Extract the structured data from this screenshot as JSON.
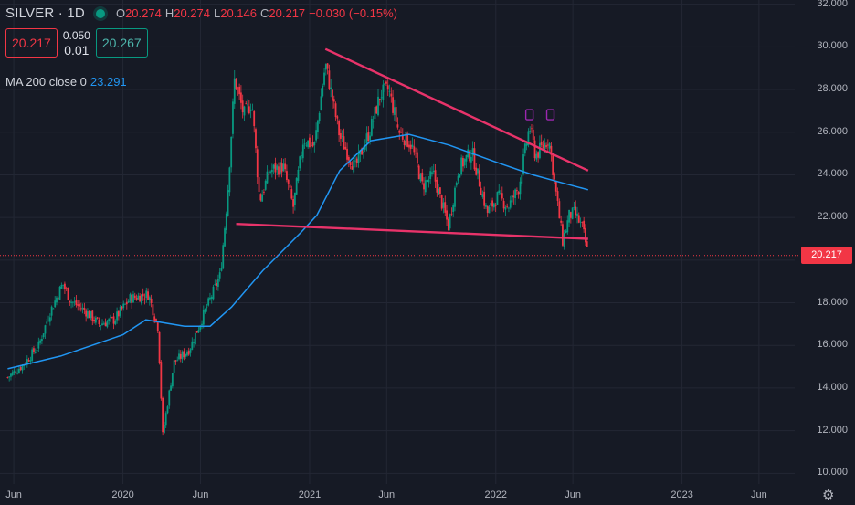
{
  "header": {
    "symbol": "SILVER · 1D",
    "ohlc": [
      {
        "k": "O",
        "v": "20.274"
      },
      {
        "k": "H",
        "v": "20.274"
      },
      {
        "k": "L",
        "v": "20.146"
      },
      {
        "k": "C",
        "v": "20.217"
      }
    ],
    "change": "−0.030 (−0.15%)"
  },
  "order": {
    "sell_price": "20.217",
    "spread": "0.050",
    "qty": "0.01",
    "buy_price": "20.267"
  },
  "indicator": {
    "label": "MA 200 close 0",
    "value": "23.291"
  },
  "last_price_label": "20.217",
  "colors": {
    "background": "#161a25",
    "up": "#089981",
    "down": "#f23645",
    "ma": "#2196f3",
    "trendline": "#e8336a",
    "marker": "#9c27b0"
  },
  "chart_data": {
    "type": "candlestick",
    "x_ticks": [
      "Jun",
      "2020",
      "Jun",
      "2021",
      "Jun",
      "2022",
      "Jun",
      "2023",
      "Jun"
    ],
    "x_tick_dates": [
      "2019-06-01",
      "2020-01-01",
      "2020-06-01",
      "2021-01-01",
      "2021-06-01",
      "2022-01-01",
      "2022-06-01",
      "2023-01-01",
      "2023-06-01"
    ],
    "y_ticks": [
      "32.000",
      "30.000",
      "28.000",
      "26.000",
      "24.000",
      "22.000",
      "20.000",
      "18.000",
      "16.000",
      "14.000",
      "12.000",
      "10.000"
    ],
    "ylim": [
      9.5,
      32.2
    ],
    "price_anchors": [
      {
        "date": "2019-05-20",
        "close": 14.5
      },
      {
        "date": "2019-06-20",
        "close": 15.1
      },
      {
        "date": "2019-07-20",
        "close": 16.0
      },
      {
        "date": "2019-08-10",
        "close": 17.5
      },
      {
        "date": "2019-09-05",
        "close": 18.9
      },
      {
        "date": "2019-09-20",
        "close": 18.1
      },
      {
        "date": "2019-10-20",
        "close": 17.6
      },
      {
        "date": "2019-11-15",
        "close": 17.0
      },
      {
        "date": "2019-12-15",
        "close": 17.2
      },
      {
        "date": "2020-01-15",
        "close": 18.2
      },
      {
        "date": "2020-02-20",
        "close": 18.4
      },
      {
        "date": "2020-03-10",
        "close": 16.8
      },
      {
        "date": "2020-03-19",
        "close": 11.8
      },
      {
        "date": "2020-04-10",
        "close": 15.2
      },
      {
        "date": "2020-05-10",
        "close": 15.8
      },
      {
        "date": "2020-06-10",
        "close": 17.6
      },
      {
        "date": "2020-07-10",
        "close": 19.3
      },
      {
        "date": "2020-07-24",
        "close": 23.0
      },
      {
        "date": "2020-08-07",
        "close": 28.5
      },
      {
        "date": "2020-08-25",
        "close": 26.8
      },
      {
        "date": "2020-09-10",
        "close": 27.4
      },
      {
        "date": "2020-09-25",
        "close": 22.8
      },
      {
        "date": "2020-10-15",
        "close": 24.2
      },
      {
        "date": "2020-11-10",
        "close": 24.4
      },
      {
        "date": "2020-11-30",
        "close": 22.5
      },
      {
        "date": "2020-12-20",
        "close": 25.7
      },
      {
        "date": "2021-01-10",
        "close": 25.3
      },
      {
        "date": "2021-02-01",
        "close": 29.2
      },
      {
        "date": "2021-03-01",
        "close": 25.8
      },
      {
        "date": "2021-03-31",
        "close": 24.3
      },
      {
        "date": "2021-05-01",
        "close": 26.2
      },
      {
        "date": "2021-05-20",
        "close": 27.8
      },
      {
        "date": "2021-06-05",
        "close": 28.0
      },
      {
        "date": "2021-06-25",
        "close": 26.0
      },
      {
        "date": "2021-07-20",
        "close": 25.4
      },
      {
        "date": "2021-08-10",
        "close": 23.5
      },
      {
        "date": "2021-09-01",
        "close": 24.0
      },
      {
        "date": "2021-09-30",
        "close": 21.6
      },
      {
        "date": "2021-10-20",
        "close": 24.3
      },
      {
        "date": "2021-11-15",
        "close": 25.1
      },
      {
        "date": "2021-12-15",
        "close": 22.2
      },
      {
        "date": "2022-01-05",
        "close": 23.0
      },
      {
        "date": "2022-01-25",
        "close": 22.5
      },
      {
        "date": "2022-02-15",
        "close": 23.4
      },
      {
        "date": "2022-03-08",
        "close": 26.3
      },
      {
        "date": "2022-03-20",
        "close": 24.9
      },
      {
        "date": "2022-04-15",
        "close": 25.7
      },
      {
        "date": "2022-05-01",
        "close": 22.8
      },
      {
        "date": "2022-05-12",
        "close": 20.9
      },
      {
        "date": "2022-05-25",
        "close": 22.1
      },
      {
        "date": "2022-06-05",
        "close": 22.2
      },
      {
        "date": "2022-06-20",
        "close": 21.5
      },
      {
        "date": "2022-07-01",
        "close": 20.2
      }
    ],
    "ma200": [
      {
        "date": "2019-05-20",
        "value": 14.9
      },
      {
        "date": "2019-09-01",
        "value": 15.5
      },
      {
        "date": "2020-01-01",
        "value": 16.5
      },
      {
        "date": "2020-02-15",
        "value": 17.2
      },
      {
        "date": "2020-05-01",
        "value": 16.9
      },
      {
        "date": "2020-06-20",
        "value": 16.9
      },
      {
        "date": "2020-08-01",
        "value": 17.8
      },
      {
        "date": "2020-10-01",
        "value": 19.5
      },
      {
        "date": "2020-12-15",
        "value": 21.3
      },
      {
        "date": "2021-01-15",
        "value": 22.1
      },
      {
        "date": "2021-03-01",
        "value": 24.2
      },
      {
        "date": "2021-05-01",
        "value": 25.6
      },
      {
        "date": "2021-07-15",
        "value": 25.9
      },
      {
        "date": "2021-10-01",
        "value": 25.4
      },
      {
        "date": "2022-01-01",
        "value": 24.6
      },
      {
        "date": "2022-03-15",
        "value": 24.0
      },
      {
        "date": "2022-05-15",
        "value": 23.6
      },
      {
        "date": "2022-07-01",
        "value": 23.3
      }
    ],
    "trendlines": [
      {
        "from": {
          "date": "2021-02-01",
          "value": 29.9
        },
        "to": {
          "date": "2022-07-01",
          "value": 24.2
        }
      },
      {
        "from": {
          "date": "2020-08-10",
          "value": 21.7
        },
        "to": {
          "date": "2022-07-01",
          "value": 21.0
        }
      }
    ],
    "markers": [
      {
        "date": "2022-03-08",
        "value": 26.8
      },
      {
        "date": "2022-04-18",
        "value": 26.8
      }
    ]
  }
}
